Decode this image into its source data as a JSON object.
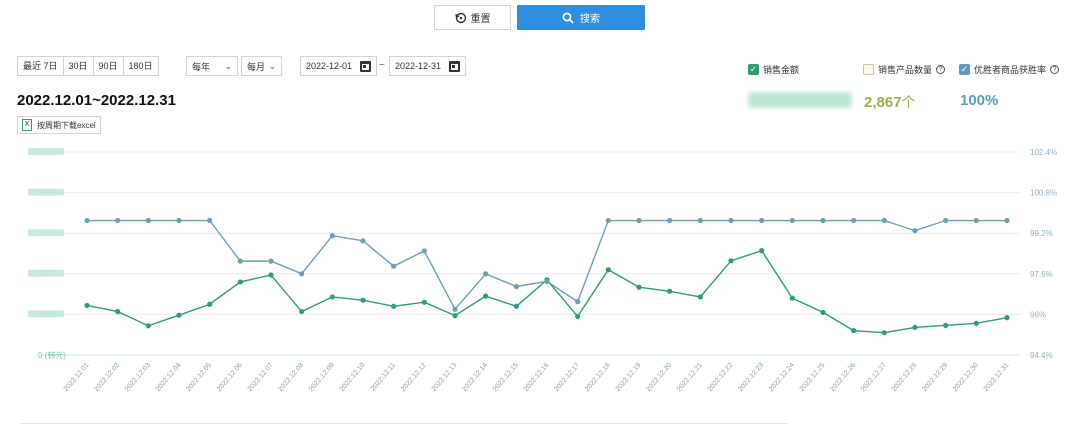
{
  "toolbar": {
    "reset_label": "重置",
    "search_label": "搜索"
  },
  "filters": {
    "periods": [
      "最近 7日",
      "30日",
      "90日",
      "180日"
    ],
    "year_select": "每年",
    "month_select": "每月",
    "date_from": "2022-12-01",
    "date_separator": "~",
    "date_to": "2022-12-31"
  },
  "legend": {
    "sales_amount": "销售金额",
    "sales_qty": "销售产品数量",
    "win_rate": "优胜者商品获胜率"
  },
  "totals": {
    "qty_value": "2,867",
    "qty_unit": "个",
    "rate_value": "100%"
  },
  "header": {
    "date_range": "2022.12.01~2022.12.31",
    "excel_label": "按周期下载excel"
  },
  "colors": {
    "sales_line": "#2e9e6f",
    "rate_line": "#6a9fb5",
    "accent": "#2f8fdf",
    "qty_text": "#a2ae3f",
    "rate_text": "#5a9bbf"
  },
  "chart_data": {
    "type": "line",
    "categories": [
      "2022.12.01",
      "2022.12.02",
      "2022.12.03",
      "2022.12.04",
      "2022.12.05",
      "2022.12.06",
      "2022.12.07",
      "2022.12.08",
      "2022.12.09",
      "2022.12.10",
      "2022.12.11",
      "2022.12.12",
      "2022.12.13",
      "2022.12.14",
      "2022.12.15",
      "2022.12.16",
      "2022.12.17",
      "2022.12.18",
      "2022.12.19",
      "2022.12.20",
      "2022.12.21",
      "2022.12.22",
      "2022.12.23",
      "2022.12.24",
      "2022.12.25",
      "2022.12.26",
      "2022.12.27",
      "2022.12.28",
      "2022.12.29",
      "2022.12.30",
      "2022.12.31"
    ],
    "series": [
      {
        "name": "销售金额",
        "axis": "left",
        "note_values_relative": "left axis labels are blurred; values are relative units on a 0-5 scale",
        "values": [
          1.22,
          1.07,
          0.72,
          0.98,
          1.25,
          1.8,
          1.97,
          1.07,
          1.43,
          1.35,
          1.2,
          1.3,
          0.97,
          1.45,
          1.2,
          1.85,
          0.95,
          2.1,
          1.67,
          1.57,
          1.43,
          2.32,
          2.57,
          1.4,
          1.05,
          0.6,
          0.55,
          0.68,
          0.73,
          0.78,
          0.92
        ]
      },
      {
        "name": "优胜者商品获胜率",
        "axis": "right",
        "values": [
          99.7,
          99.7,
          99.7,
          99.7,
          99.7,
          98.1,
          98.1,
          97.6,
          99.1,
          98.9,
          97.9,
          98.5,
          96.2,
          97.6,
          97.1,
          97.3,
          96.5,
          99.7,
          99.7,
          99.7,
          99.7,
          99.7,
          99.7,
          99.7,
          99.7,
          99.7,
          99.7,
          99.3,
          99.7,
          99.7,
          99.7
        ]
      }
    ],
    "y_left": {
      "ylim": [
        0,
        5
      ],
      "bottom_label": "0 (韩元)",
      "tick_labels_blurred": true
    },
    "y_right": {
      "ylim": [
        94.4,
        102.4
      ],
      "ticks": [
        "94.4%",
        "96%",
        "97.6%",
        "99.2%",
        "100.8%",
        "102.4%"
      ]
    },
    "grid": true,
    "legend_placement": "top-right"
  }
}
